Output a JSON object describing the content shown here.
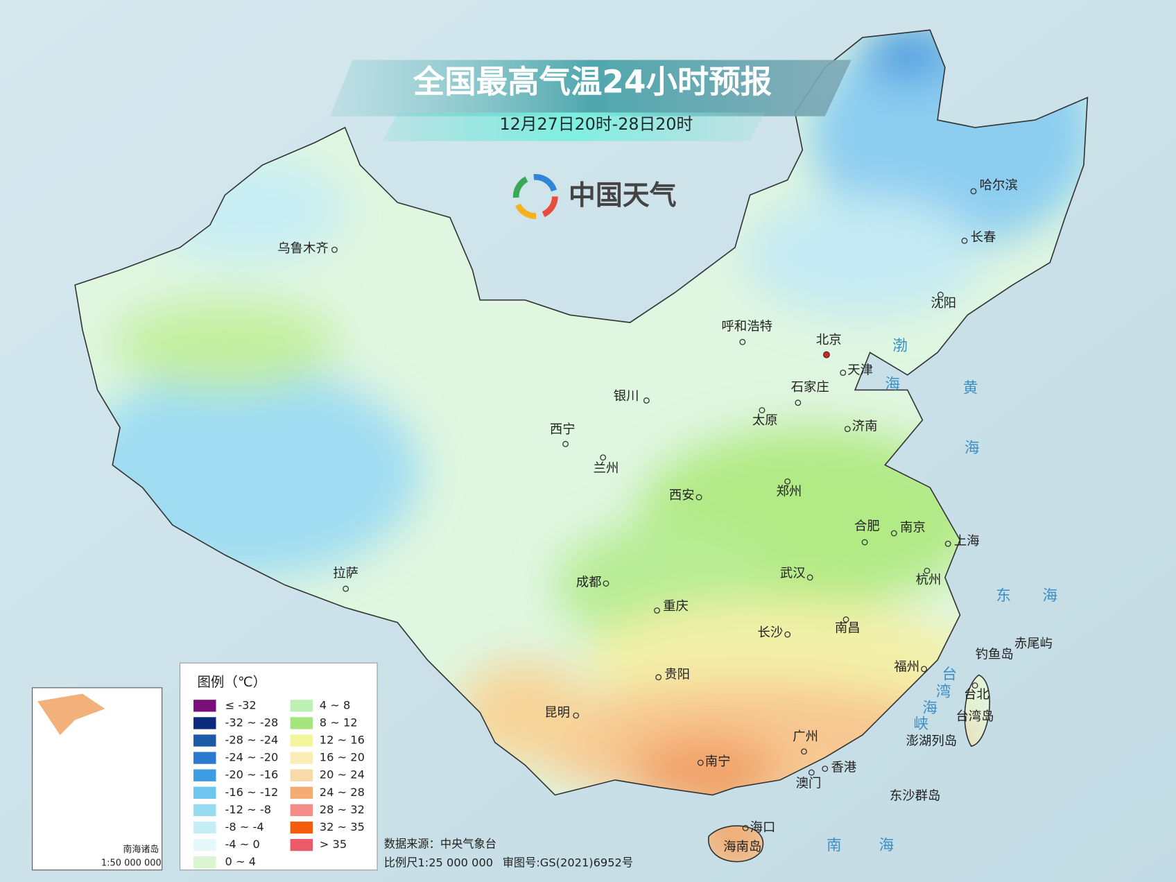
{
  "header": {
    "title": "全国最高气温24小时预报",
    "subtitle": "12月27日20时-28日20时",
    "brand": "中国天气"
  },
  "cities": [
    "乌鲁木齐",
    "呼和浩特",
    "北京",
    "天津",
    "石家庄",
    "太原",
    "济南",
    "银川",
    "西宁",
    "兰州",
    "西安",
    "郑州",
    "合肥",
    "南京",
    "上海",
    "杭州",
    "武汉",
    "成都",
    "重庆",
    "长沙",
    "南昌",
    "拉萨",
    "贵阳",
    "福州",
    "台北",
    "昆明",
    "南宁",
    "广州",
    "香港",
    "澳门",
    "海口",
    "哈尔滨",
    "长春",
    "沈阳"
  ],
  "places": [
    "台湾岛",
    "海南岛",
    "钓鱼岛",
    "赤尾屿",
    "澎湖列岛",
    "东沙群岛"
  ],
  "seas": [
    [
      "渤",
      "海"
    ],
    [
      "黄",
      "海"
    ],
    [
      "东",
      "海"
    ],
    [
      "台",
      "湾",
      "海",
      "峡"
    ],
    [
      "南",
      "海"
    ]
  ],
  "legend": {
    "title": "图例（℃）",
    "items": [
      {
        "label": "≤ -32",
        "color": "#7a0f7a"
      },
      {
        "label": "-32 ~ -28",
        "color": "#0b2a7a"
      },
      {
        "label": "-28 ~ -24",
        "color": "#1d5aa8"
      },
      {
        "label": "-24 ~ -20",
        "color": "#2a7bd0"
      },
      {
        "label": "-20 ~ -16",
        "color": "#3d9be3"
      },
      {
        "label": "-16 ~ -12",
        "color": "#6ec6ef"
      },
      {
        "label": "-12 ~ -8",
        "color": "#98dcf2"
      },
      {
        "label": "-8 ~ -4",
        "color": "#c4eef5"
      },
      {
        "label": "-4 ~ 0",
        "color": "#e6f8fa"
      },
      {
        "label": "0 ~ 4",
        "color": "#d9f5d2"
      },
      {
        "label": "4 ~ 8",
        "color": "#bdf0b3"
      },
      {
        "label": "8 ~ 12",
        "color": "#a6e57d"
      },
      {
        "label": "12 ~ 16",
        "color": "#f2f59a"
      },
      {
        "label": "16 ~ 20",
        "color": "#fbeeb5"
      },
      {
        "label": "20 ~ 24",
        "color": "#f8d9a8"
      },
      {
        "label": "24 ~ 28",
        "color": "#f5ac73"
      },
      {
        "label": "28 ~ 32",
        "color": "#f58e86"
      },
      {
        "label": "32 ~ 35",
        "color": "#f25c0c"
      },
      {
        "label": "> 35",
        "color": "#ea5a6a"
      }
    ]
  },
  "footer": {
    "source": "数据来源：中央气象台",
    "scale": "比例尺1:25 000 000",
    "review": "审图号:GS(2021)6952号"
  },
  "inset": {
    "title": "南海诸岛",
    "scale": "1:50 000 000"
  }
}
